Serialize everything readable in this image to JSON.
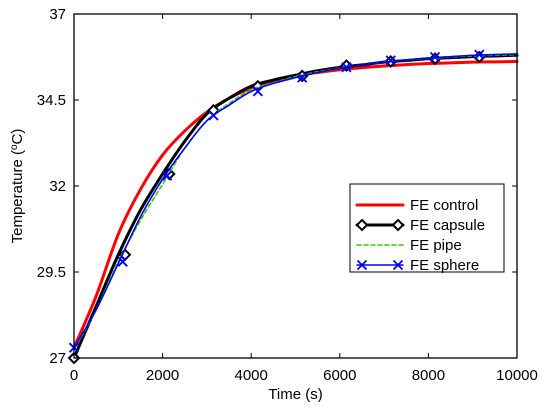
{
  "chart_data": {
    "type": "line",
    "title": "",
    "xlabel": "Time (s)",
    "ylabel_main": "Temperature (",
    "ylabel_sup": "o",
    "ylabel_tail": "C)",
    "xlim": [
      0,
      10000
    ],
    "ylim": [
      27,
      37
    ],
    "x_ticks": [
      0,
      2000,
      4000,
      6000,
      8000,
      10000
    ],
    "x_tick_labels": [
      "0",
      "2000",
      "4000",
      "6000",
      "8000",
      "10000"
    ],
    "y_ticks": [
      27,
      29.5,
      32,
      34.5,
      37
    ],
    "y_tick_labels": [
      "27",
      "29.5",
      "32",
      "34.5",
      "37"
    ],
    "grid": false,
    "legend_position": "center-right",
    "series": [
      {
        "name": "FE control",
        "color": "#ff0000",
        "style": "solid-thick",
        "marker": "none",
        "x": [
          0,
          500,
          1000,
          1500,
          2000,
          2500,
          3000,
          3500,
          4000,
          4500,
          5000,
          5500,
          6000,
          6500,
          7000,
          7500,
          8000,
          8500,
          9000,
          9500,
          10000
        ],
        "y": [
          27.3,
          28.8,
          30.6,
          31.9,
          32.9,
          33.6,
          34.15,
          34.55,
          34.85,
          35.05,
          35.2,
          35.3,
          35.38,
          35.44,
          35.49,
          35.53,
          35.56,
          35.58,
          35.6,
          35.61,
          35.62
        ]
      },
      {
        "name": "FE capsule",
        "color": "#000000",
        "style": "solid-thick",
        "marker": "diamond-open",
        "x": [
          0,
          500,
          1000,
          1500,
          2000,
          2500,
          3000,
          3500,
          4000,
          4500,
          5000,
          5500,
          6000,
          6500,
          7000,
          7500,
          8000,
          8500,
          9000,
          9500,
          10000
        ],
        "y": [
          27.0,
          28.5,
          30.0,
          31.3,
          32.35,
          33.3,
          34.1,
          34.55,
          34.9,
          35.08,
          35.22,
          35.35,
          35.45,
          35.52,
          35.6,
          35.65,
          35.7,
          35.73,
          35.76,
          35.78,
          35.8
        ],
        "marker_x": [
          0,
          1150,
          2150,
          3150,
          4150,
          5150,
          6150,
          7150,
          8150,
          9150
        ],
        "marker_y": [
          27.0,
          30.0,
          32.35,
          34.2,
          34.9,
          35.2,
          35.5,
          35.62,
          35.7,
          35.75
        ]
      },
      {
        "name": "FE pipe",
        "color": "#33cc00",
        "style": "dashed",
        "marker": "none",
        "x": [
          0,
          500,
          1000,
          1500,
          2000,
          2500,
          3000,
          3500,
          4000,
          4500,
          5000,
          5500,
          6000,
          6500,
          7000,
          7500,
          8000,
          8500,
          9000,
          9500,
          10000
        ],
        "y": [
          27.25,
          28.4,
          29.8,
          31.0,
          32.05,
          33.1,
          33.9,
          34.4,
          34.8,
          35.0,
          35.18,
          35.32,
          35.43,
          35.52,
          35.6,
          35.66,
          35.71,
          35.75,
          35.78,
          35.8,
          35.82
        ]
      },
      {
        "name": "FE sphere",
        "color": "#0000ff",
        "style": "solid",
        "marker": "x",
        "x": [
          0,
          500,
          1000,
          1500,
          2000,
          2500,
          3000,
          3500,
          4000,
          4500,
          5000,
          5500,
          6000,
          6500,
          7000,
          7500,
          8000,
          8500,
          9000,
          9500,
          10000
        ],
        "y": [
          27.3,
          28.4,
          29.75,
          31.1,
          32.2,
          33.1,
          33.9,
          34.35,
          34.75,
          34.98,
          35.15,
          35.3,
          35.42,
          35.52,
          35.6,
          35.66,
          35.72,
          35.76,
          35.8,
          35.82,
          35.84
        ],
        "marker_x": [
          0,
          1100,
          2100,
          3150,
          4150,
          5150,
          6150,
          7150,
          8150,
          9150
        ],
        "marker_y": [
          27.3,
          29.8,
          32.3,
          34.05,
          34.75,
          35.15,
          35.45,
          35.65,
          35.75,
          35.82
        ]
      }
    ]
  }
}
